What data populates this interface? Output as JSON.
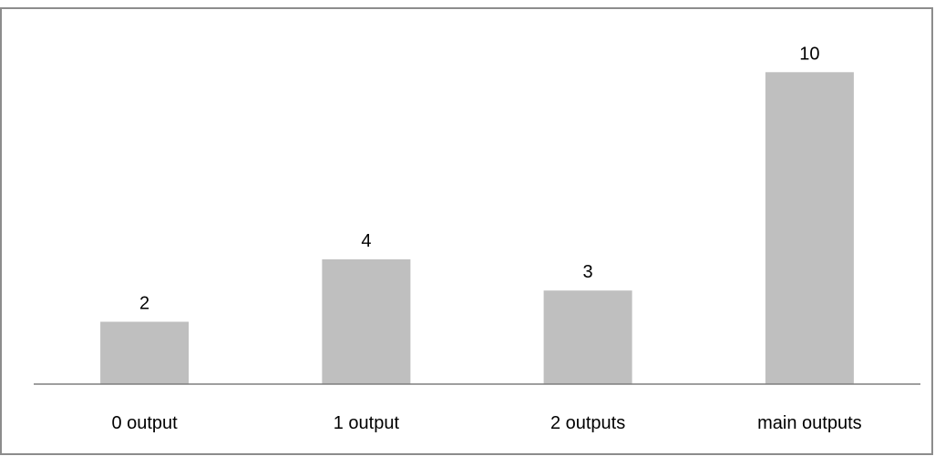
{
  "chart_data": {
    "type": "bar",
    "title": "",
    "xlabel": "",
    "ylabel": "",
    "categories": [
      "0 output",
      "1 output",
      "2 outputs",
      "main outputs"
    ],
    "values": [
      2,
      4,
      3,
      10
    ],
    "data_labels": [
      "2",
      "4",
      "3",
      "10"
    ],
    "ylim": [
      0,
      11
    ],
    "grid": false,
    "legend": "none",
    "bar_color": "#bfbfbf"
  }
}
